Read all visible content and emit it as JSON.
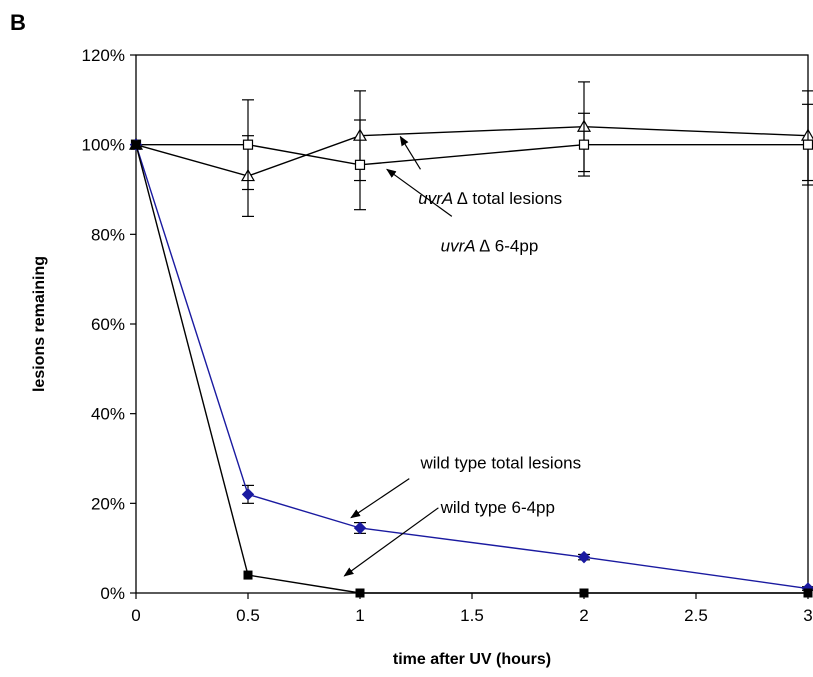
{
  "chart_data": {
    "type": "line",
    "panel_label": "B",
    "xlabel": "time after UV (hours)",
    "ylabel": "lesions remaining",
    "xlim": [
      0,
      3
    ],
    "ylim": [
      0,
      120
    ],
    "x_ticks": [
      0,
      0.5,
      1,
      1.5,
      2,
      2.5,
      3
    ],
    "x_tick_labels": [
      "0",
      "0.5",
      "1",
      "1.5",
      "2",
      "2.5",
      "3"
    ],
    "y_ticks": [
      0,
      20,
      40,
      60,
      80,
      100,
      120
    ],
    "y_tick_labels": [
      "0%",
      "20%",
      "40%",
      "60%",
      "80%",
      "100%",
      "120%"
    ],
    "grid": false,
    "legend": "none",
    "series": [
      {
        "key": "uvra_total",
        "marker": "triangle-open",
        "color": "#000000",
        "x": [
          0,
          0.5,
          1,
          2,
          3
        ],
        "y": [
          100,
          93,
          102,
          104,
          102
        ],
        "err": [
          0,
          9,
          10,
          10,
          10
        ]
      },
      {
        "key": "uvra_64pp",
        "marker": "square-open",
        "color": "#000000",
        "x": [
          0,
          0.5,
          1,
          2,
          3
        ],
        "y": [
          100,
          100,
          95.5,
          100,
          100
        ],
        "err": [
          0,
          10,
          10,
          7,
          9
        ]
      },
      {
        "key": "wt_total",
        "marker": "diamond-filled",
        "color": "#1a1aa0",
        "x": [
          0,
          0.5,
          1,
          2,
          3
        ],
        "y": [
          100,
          22,
          14.5,
          8,
          1
        ],
        "err": [
          0,
          2,
          1.2,
          0.6,
          0.4
        ]
      },
      {
        "key": "wt_64pp",
        "marker": "square-filled",
        "color": "#000000",
        "x": [
          0,
          0.5,
          1,
          2,
          3
        ],
        "y": [
          100,
          4,
          0,
          0,
          0
        ],
        "err": [
          0,
          0,
          0,
          0,
          0
        ]
      }
    ],
    "annotations": [
      {
        "key": "a1",
        "italic": "uvrA",
        "symbol": "∆",
        "rest": " total lesions",
        "text_x": 1.26,
        "text_y": 86.8,
        "arrow_to": [
          1.18,
          101.8
        ],
        "arrow_from": [
          1.27,
          94.5
        ]
      },
      {
        "key": "a2",
        "italic": "uvrA",
        "symbol": "∆",
        "rest": " 6-4pp",
        "text_x": 1.36,
        "text_y": 76.2,
        "arrow_to": [
          1.12,
          94.5
        ],
        "arrow_from": [
          1.41,
          84.0
        ]
      },
      {
        "key": "a3",
        "italic": "",
        "symbol": "",
        "rest": "wild type total lesions",
        "text_x": 1.27,
        "text_y": 27.8,
        "arrow_to": [
          0.96,
          16.8
        ],
        "arrow_from": [
          1.22,
          25.5
        ]
      },
      {
        "key": "a4",
        "italic": "",
        "symbol": "",
        "rest": "wild type 6-4pp",
        "text_x": 1.36,
        "text_y": 17.8,
        "arrow_to": [
          0.93,
          3.8
        ],
        "arrow_from": [
          1.35,
          19.0
        ]
      }
    ]
  }
}
